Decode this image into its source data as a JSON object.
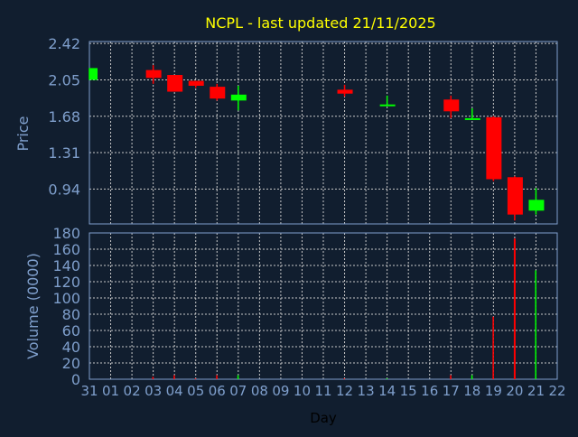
{
  "colors": {
    "background": "#111e2f",
    "axis": "#7f9fcc",
    "grid": "#c8c8c8",
    "title": "#ffff00",
    "up": "#00ff00",
    "down": "#ff0000",
    "xlabel": "#000000"
  },
  "chart_data": [
    {
      "type": "candlestick",
      "title": "NCPL - last updated 21/11/2025",
      "ylabel": "Price",
      "ylim": [
        0.585,
        2.44
      ],
      "yticks": [
        "2.42",
        "2.05",
        "1.68",
        "1.31",
        "0.94"
      ],
      "grid": true,
      "candles": [
        {
          "day": "31",
          "open": 2.05,
          "high": 2.17,
          "low": 2.05,
          "close": 2.17
        },
        {
          "day": "03",
          "open": 2.15,
          "high": 2.2,
          "low": 2.01,
          "close": 2.07
        },
        {
          "day": "04",
          "open": 2.1,
          "high": 2.1,
          "low": 1.93,
          "close": 1.93
        },
        {
          "day": "05",
          "open": 2.04,
          "high": 2.04,
          "low": 1.97,
          "close": 1.99
        },
        {
          "day": "06",
          "open": 1.98,
          "high": 2.01,
          "low": 1.84,
          "close": 1.86
        },
        {
          "day": "07",
          "open": 1.84,
          "high": 1.99,
          "low": 1.74,
          "close": 1.9
        },
        {
          "day": "12",
          "open": 1.95,
          "high": 2.0,
          "low": 1.88,
          "close": 1.91
        },
        {
          "day": "14",
          "open": 1.8,
          "high": 1.89,
          "low": 1.8,
          "close": 1.8
        },
        {
          "day": "17",
          "open": 1.85,
          "high": 1.89,
          "low": 1.66,
          "close": 1.73
        },
        {
          "day": "18",
          "open": 1.66,
          "high": 1.76,
          "low": 1.66,
          "close": 1.66
        },
        {
          "day": "19",
          "open": 1.67,
          "high": 1.68,
          "low": 1.02,
          "close": 1.04
        },
        {
          "day": "20",
          "open": 1.06,
          "high": 1.07,
          "low": 0.62,
          "close": 0.68
        },
        {
          "day": "21",
          "open": 0.72,
          "high": 0.95,
          "low": 0.68,
          "close": 0.83
        }
      ]
    },
    {
      "type": "bar",
      "ylabel": "Volume (0000)",
      "xlabel": "Day",
      "ylim": [
        0,
        180
      ],
      "yticks": [
        "0",
        "20",
        "40",
        "60",
        "80",
        "100",
        "120",
        "140",
        "160",
        "180"
      ],
      "categories": [
        "31",
        "01",
        "02",
        "03",
        "04",
        "05",
        "06",
        "07",
        "08",
        "09",
        "10",
        "11",
        "12",
        "13",
        "14",
        "15",
        "16",
        "17",
        "18",
        "19",
        "20",
        "21",
        "22"
      ],
      "grid": true,
      "bars": [
        {
          "day": "03",
          "value": 3,
          "dir": "down"
        },
        {
          "day": "04",
          "value": 5,
          "dir": "down"
        },
        {
          "day": "05",
          "value": 1,
          "dir": "down"
        },
        {
          "day": "06",
          "value": 5,
          "dir": "down"
        },
        {
          "day": "07",
          "value": 5,
          "dir": "up"
        },
        {
          "day": "12",
          "value": 1,
          "dir": "down"
        },
        {
          "day": "14",
          "value": 1,
          "dir": "up"
        },
        {
          "day": "17",
          "value": 5,
          "dir": "down"
        },
        {
          "day": "18",
          "value": 5,
          "dir": "up"
        },
        {
          "day": "19",
          "value": 77,
          "dir": "down"
        },
        {
          "day": "20",
          "value": 173,
          "dir": "down"
        },
        {
          "day": "21",
          "value": 134,
          "dir": "up"
        }
      ]
    }
  ]
}
